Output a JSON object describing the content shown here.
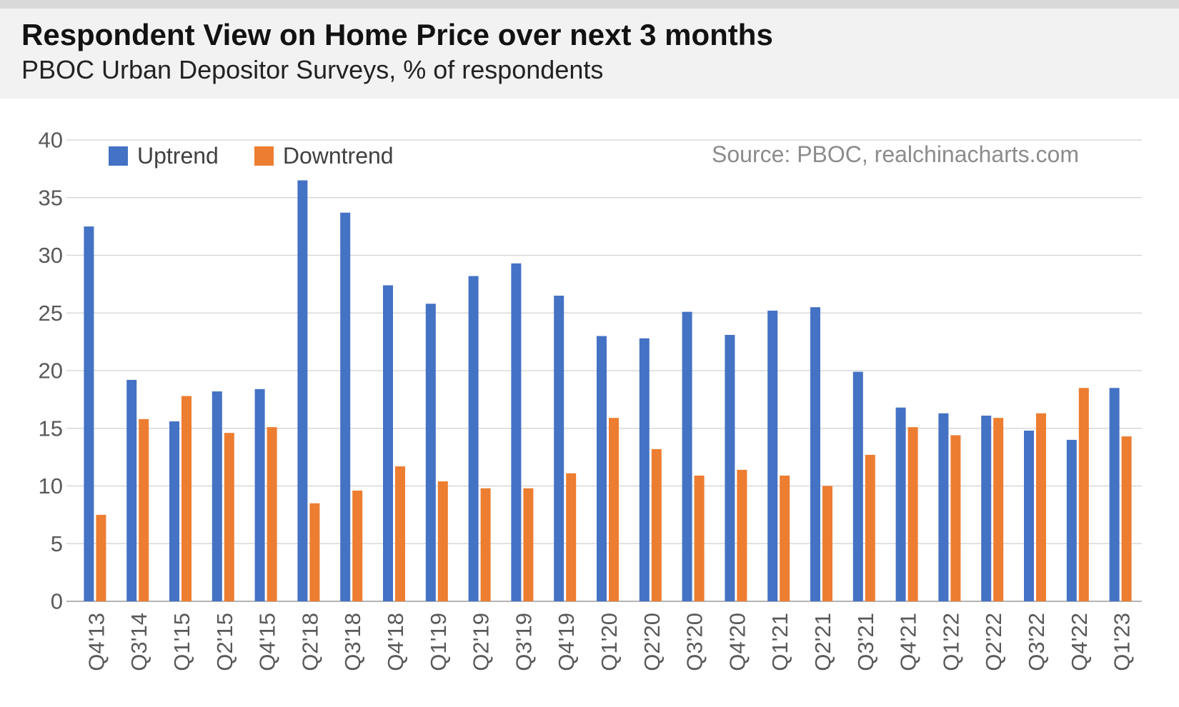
{
  "header": {
    "title": "Respondent View on Home Price over next 3 months",
    "subtitle": "PBOC Urban Depositor Surveys, % of respondents"
  },
  "source_note": "Source: PBOC, realchinacharts.com",
  "chart_data": {
    "type": "bar",
    "title": "Respondent View on Home Price over next 3 months",
    "subtitle": "PBOC Urban Depositor Surveys, % of respondents",
    "categories": [
      "Q4'13",
      "Q3'14",
      "Q1'15",
      "Q2'15",
      "Q4'15",
      "Q2'18",
      "Q3'18",
      "Q4'18",
      "Q1'19",
      "Q2'19",
      "Q3'19",
      "Q4'19",
      "Q1'20",
      "Q2'20",
      "Q3'20",
      "Q4'20",
      "Q1'21",
      "Q2'21",
      "Q3'21",
      "Q4'21",
      "Q1'22",
      "Q2'22",
      "Q3'22",
      "Q4'22",
      "Q1'23"
    ],
    "series": [
      {
        "name": "Uptrend",
        "color": "#4472C4",
        "values": [
          32.5,
          19.2,
          15.6,
          18.2,
          18.4,
          36.5,
          33.7,
          27.4,
          25.8,
          28.2,
          29.3,
          26.5,
          23.0,
          22.8,
          25.1,
          23.1,
          25.2,
          25.5,
          19.9,
          16.8,
          16.3,
          16.1,
          14.8,
          14.0,
          18.5
        ]
      },
      {
        "name": "Downtrend",
        "color": "#ED7D31",
        "values": [
          7.5,
          15.8,
          17.8,
          14.6,
          15.1,
          8.5,
          9.6,
          11.7,
          10.4,
          9.8,
          9.8,
          11.1,
          15.9,
          13.2,
          10.9,
          11.4,
          10.9,
          10.0,
          12.7,
          15.1,
          14.4,
          15.9,
          16.3,
          18.5,
          14.3
        ]
      }
    ],
    "ylabel": "",
    "xlabel": "",
    "ylim": [
      0,
      40
    ],
    "yticks": [
      0,
      5,
      10,
      15,
      20,
      25,
      30,
      35,
      40
    ],
    "grid": true,
    "legend_position": "top-left-inside",
    "source": "Source: PBOC, realchinacharts.com",
    "x_tick_rotation": -90
  }
}
